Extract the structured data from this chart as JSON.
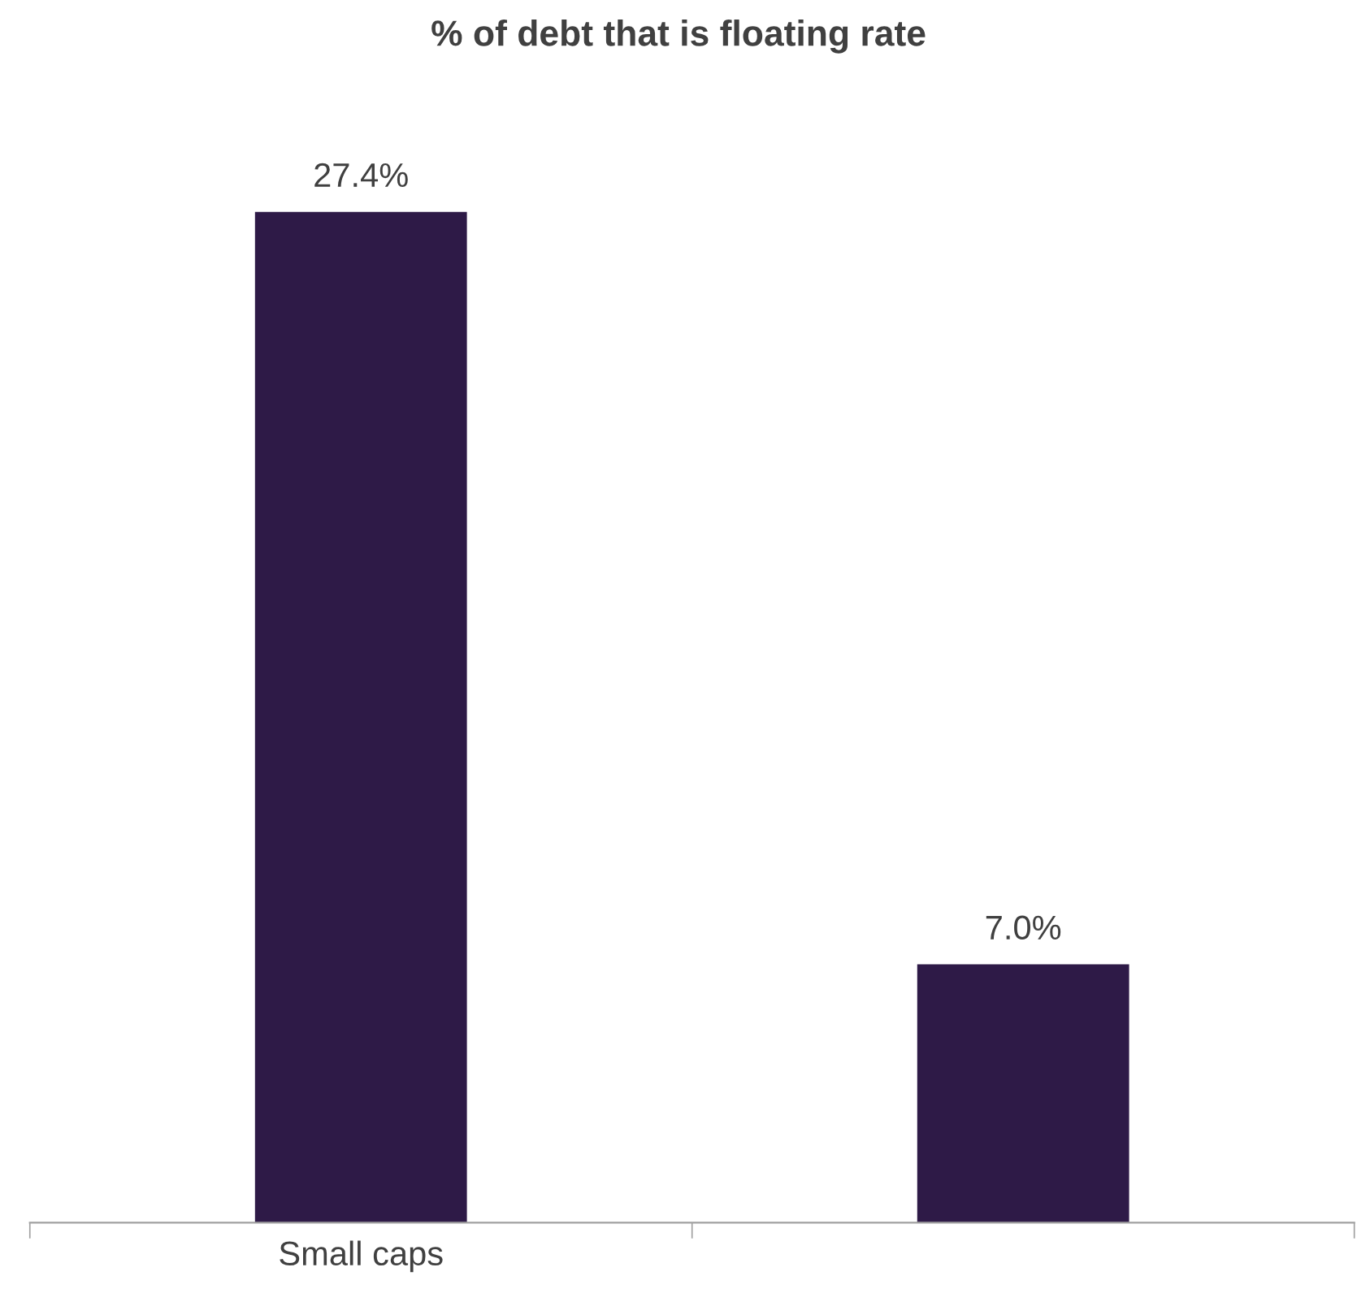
{
  "chart_data": {
    "type": "bar",
    "title": "% of debt that is floating rate",
    "categories": [
      "Small caps",
      null
    ],
    "values": [
      27.4,
      7.0
    ],
    "value_labels": [
      "27.4%",
      "7.0%"
    ],
    "color": "#2e1a47",
    "grid": false,
    "legend": false
  }
}
